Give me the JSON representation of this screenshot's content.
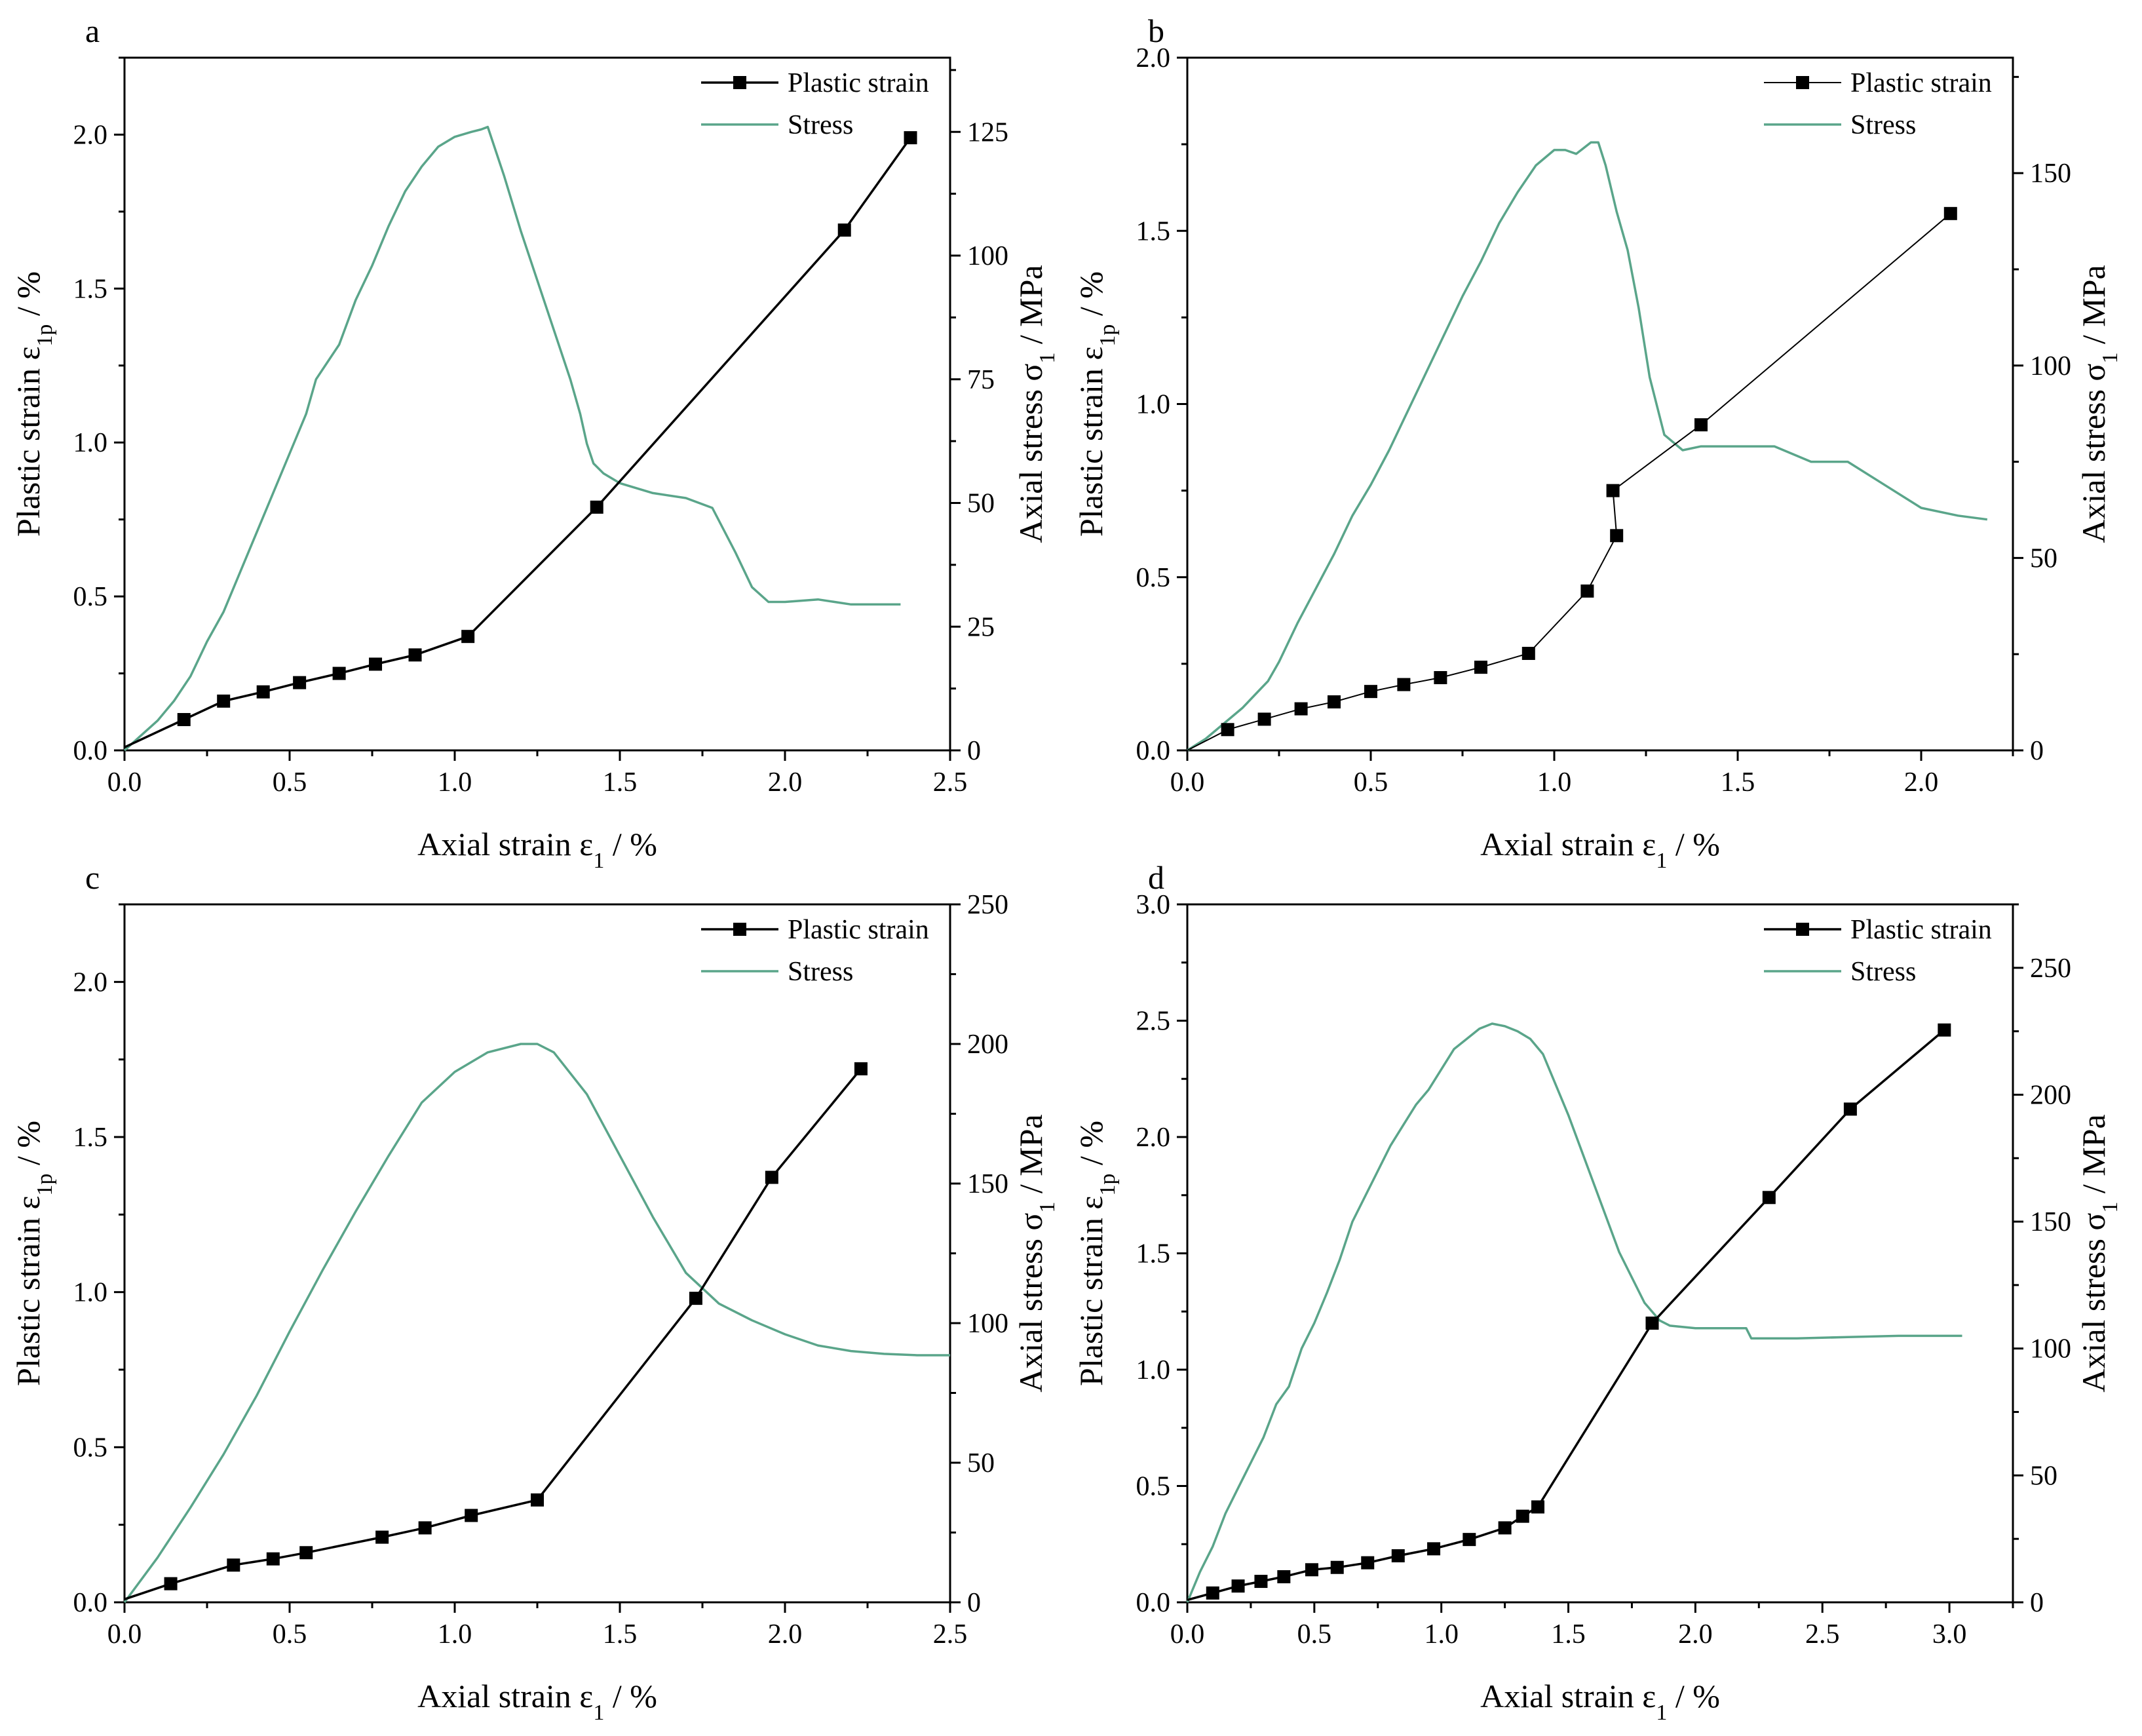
{
  "colors": {
    "plastic": "#000000",
    "stress": "#5aa58a"
  },
  "chart_data": [
    {
      "type": "line",
      "panel": "a",
      "xlabel": {
        "main": "Axial strain ε",
        "sub": "1",
        "tail": " / %"
      },
      "ylabel_left": {
        "main": "Plastic strain ε",
        "sub": "1p",
        "tail": " / %"
      },
      "ylabel_right": {
        "main": "Axial stress σ",
        "sub": "1",
        "tail": " / MPa"
      },
      "xlim": [
        0,
        2.5
      ],
      "ylim_left": [
        0,
        2.25
      ],
      "ylim_right": [
        0,
        140
      ],
      "xticks": [
        "0.0",
        "0.5",
        "1.0",
        "1.5",
        "2.0",
        "2.5"
      ],
      "xtick_values": [
        0,
        0.5,
        1,
        1.5,
        2,
        2.5
      ],
      "yticks_left": [
        "0.0",
        "0.5",
        "1.0",
        "1.5",
        "2.0"
      ],
      "ytick_left_values": [
        0,
        0.5,
        1,
        1.5,
        2
      ],
      "yticks_right": [
        "0",
        "25",
        "50",
        "75",
        "100",
        "125"
      ],
      "ytick_right_values": [
        0,
        25,
        50,
        75,
        100,
        125
      ],
      "legend": {
        "plastic": "Plastic strain",
        "stress": "Stress",
        "position": "top-right"
      },
      "plastic_x": [
        0,
        0.18,
        0.3,
        0.42,
        0.53,
        0.65,
        0.76,
        0.88,
        1.04,
        1.43,
        2.18,
        2.38
      ],
      "plastic_y": [
        0.01,
        0.1,
        0.16,
        0.19,
        0.22,
        0.25,
        0.28,
        0.31,
        0.37,
        0.79,
        1.69,
        1.99
      ],
      "stress_x": [
        0,
        0.05,
        0.1,
        0.15,
        0.2,
        0.25,
        0.3,
        0.35,
        0.4,
        0.45,
        0.5,
        0.55,
        0.58,
        0.62,
        0.65,
        0.7,
        0.75,
        0.8,
        0.85,
        0.9,
        0.95,
        1.0,
        1.05,
        1.08,
        1.1,
        1.15,
        1.2,
        1.25,
        1.3,
        1.35,
        1.38,
        1.4,
        1.42,
        1.45,
        1.5,
        1.6,
        1.7,
        1.78,
        1.85,
        1.9,
        1.95,
        2.0,
        2.1,
        2.2,
        2.3,
        2.35
      ],
      "stress_y": [
        0,
        3,
        6,
        10,
        15,
        22,
        28,
        36,
        44,
        52,
        60,
        68,
        75,
        79,
        82,
        91,
        98,
        106,
        113,
        118,
        122,
        124,
        125,
        125.5,
        126,
        116,
        105,
        95,
        85,
        75,
        68,
        62,
        58,
        56,
        54,
        52,
        51,
        49,
        40,
        33,
        30,
        30,
        30.5,
        29.5,
        29.5,
        29.5
      ]
    },
    {
      "type": "line",
      "panel": "b",
      "xlabel": {
        "main": "Axial strain ε",
        "sub": "1",
        "tail": " / %"
      },
      "ylabel_left": {
        "main": "Plastic strain ε",
        "sub": "1p",
        "tail": " / %"
      },
      "ylabel_right": {
        "main": "Axial stress σ",
        "sub": "1",
        "tail": " / MPa"
      },
      "xlim": [
        0,
        2.25
      ],
      "ylim_left": [
        0,
        2.0
      ],
      "ylim_right": [
        0,
        180
      ],
      "xticks": [
        "0.0",
        "0.5",
        "1.0",
        "1.5",
        "2.0"
      ],
      "xtick_values": [
        0,
        0.5,
        1,
        1.5,
        2
      ],
      "yticks_left": [
        "0.0",
        "0.5",
        "1.0",
        "1.5",
        "2.0"
      ],
      "ytick_left_values": [
        0,
        0.5,
        1,
        1.5,
        2
      ],
      "yticks_right": [
        "0",
        "50",
        "100",
        "150"
      ],
      "ytick_right_values": [
        0,
        50,
        100,
        150
      ],
      "legend": {
        "plastic": "Plastic strain",
        "stress": "Stress",
        "position": "top-right"
      },
      "plastic_x": [
        0,
        0.11,
        0.21,
        0.31,
        0.4,
        0.5,
        0.59,
        0.69,
        0.8,
        0.93,
        1.09,
        1.17,
        1.16,
        1.4,
        2.08
      ],
      "plastic_y": [
        0.0,
        0.06,
        0.09,
        0.12,
        0.14,
        0.17,
        0.19,
        0.21,
        0.24,
        0.28,
        0.46,
        0.62,
        0.75,
        0.94,
        1.55
      ],
      "stress_x": [
        0,
        0.05,
        0.1,
        0.15,
        0.2,
        0.22,
        0.25,
        0.3,
        0.35,
        0.4,
        0.45,
        0.5,
        0.55,
        0.6,
        0.65,
        0.7,
        0.75,
        0.8,
        0.85,
        0.9,
        0.95,
        1.0,
        1.03,
        1.06,
        1.1,
        1.12,
        1.14,
        1.17,
        1.2,
        1.23,
        1.26,
        1.3,
        1.35,
        1.4,
        1.5,
        1.6,
        1.7,
        1.8,
        1.9,
        2.0,
        2.1,
        2.18
      ],
      "stress_y": [
        0,
        3,
        7,
        11,
        16,
        18,
        23,
        33,
        42,
        51,
        61,
        69,
        78,
        88,
        98,
        108,
        118,
        127,
        137,
        145,
        152,
        156,
        156,
        155,
        158,
        158,
        152,
        140,
        130,
        115,
        97,
        82,
        78,
        79,
        79,
        79,
        75,
        75,
        69,
        63,
        61,
        60
      ]
    },
    {
      "type": "line",
      "panel": "c",
      "xlabel": {
        "main": "Axial strain ε",
        "sub": "1",
        "tail": " / %"
      },
      "ylabel_left": {
        "main": "Plastic strain ε",
        "sub": "1p",
        "tail": " / %"
      },
      "ylabel_right": {
        "main": "Axial stress σ",
        "sub": "1",
        "tail": " / MPa"
      },
      "xlim": [
        0,
        2.5
      ],
      "ylim_left": [
        0,
        2.25
      ],
      "ylim_right": [
        0,
        250
      ],
      "xticks": [
        "0.0",
        "0.5",
        "1.0",
        "1.5",
        "2.0",
        "2.5"
      ],
      "xtick_values": [
        0,
        0.5,
        1,
        1.5,
        2,
        2.5
      ],
      "yticks_left": [
        "0.0",
        "0.5",
        "1.0",
        "1.5",
        "2.0"
      ],
      "ytick_left_values": [
        0,
        0.5,
        1,
        1.5,
        2
      ],
      "yticks_right": [
        "0",
        "50",
        "100",
        "150",
        "200",
        "250"
      ],
      "ytick_right_values": [
        0,
        50,
        100,
        150,
        200,
        250
      ],
      "legend": {
        "plastic": "Plastic strain",
        "stress": "Stress",
        "position": "top-right"
      },
      "plastic_x": [
        0,
        0.14,
        0.33,
        0.45,
        0.55,
        0.78,
        0.91,
        1.05,
        1.25,
        1.73,
        1.96,
        2.23
      ],
      "plastic_y": [
        0.01,
        0.06,
        0.12,
        0.14,
        0.16,
        0.21,
        0.24,
        0.28,
        0.33,
        0.98,
        1.37,
        1.72
      ],
      "stress_x": [
        0,
        0.05,
        0.1,
        0.2,
        0.3,
        0.4,
        0.5,
        0.6,
        0.7,
        0.8,
        0.9,
        1.0,
        1.1,
        1.2,
        1.25,
        1.3,
        1.4,
        1.5,
        1.6,
        1.7,
        1.8,
        1.9,
        2.0,
        2.1,
        2.2,
        2.3,
        2.4,
        2.5
      ],
      "stress_y": [
        0,
        8,
        16,
        34,
        53,
        74,
        97,
        119,
        140,
        160,
        179,
        190,
        197,
        200,
        200,
        197,
        182,
        160,
        138,
        118,
        107,
        101,
        96,
        92,
        90,
        89,
        88.5,
        88.5
      ]
    },
    {
      "type": "line",
      "panel": "d",
      "xlabel": {
        "main": "Axial strain ε",
        "sub": "1",
        "tail": " / %"
      },
      "ylabel_left": {
        "main": "Plastic strain ε",
        "sub": "1p",
        "tail": " / %"
      },
      "ylabel_right": {
        "main": "Axial stress σ",
        "sub": "1",
        "tail": " / MPa"
      },
      "xlim": [
        0,
        3.25
      ],
      "ylim_left": [
        0,
        3.0
      ],
      "ylim_right": [
        0,
        275
      ],
      "xticks": [
        "0.0",
        "0.5",
        "1.0",
        "1.5",
        "2.0",
        "2.5",
        "3.0"
      ],
      "xtick_values": [
        0,
        0.5,
        1,
        1.5,
        2,
        2.5,
        3
      ],
      "yticks_left": [
        "0.0",
        "0.5",
        "1.0",
        "1.5",
        "2.0",
        "2.5",
        "3.0"
      ],
      "ytick_left_values": [
        0,
        0.5,
        1,
        1.5,
        2,
        2.5,
        3
      ],
      "yticks_right": [
        "0",
        "50",
        "100",
        "150",
        "200",
        "250"
      ],
      "ytick_right_values": [
        0,
        50,
        100,
        150,
        200,
        250
      ],
      "legend": {
        "plastic": "Plastic strain",
        "stress": "Stress",
        "position": "top-right"
      },
      "plastic_x": [
        0,
        0.1,
        0.2,
        0.29,
        0.38,
        0.49,
        0.59,
        0.71,
        0.83,
        0.97,
        1.11,
        1.25,
        1.32,
        1.38,
        1.83,
        2.29,
        2.61,
        2.98
      ],
      "plastic_y": [
        0.01,
        0.04,
        0.07,
        0.09,
        0.11,
        0.14,
        0.15,
        0.17,
        0.2,
        0.23,
        0.27,
        0.32,
        0.37,
        0.41,
        1.2,
        1.74,
        2.12,
        2.46
      ],
      "stress_x": [
        0,
        0.05,
        0.1,
        0.15,
        0.2,
        0.25,
        0.3,
        0.35,
        0.4,
        0.45,
        0.5,
        0.55,
        0.6,
        0.65,
        0.7,
        0.75,
        0.8,
        0.85,
        0.9,
        0.95,
        1.0,
        1.05,
        1.1,
        1.15,
        1.2,
        1.25,
        1.3,
        1.35,
        1.4,
        1.5,
        1.6,
        1.7,
        1.8,
        1.86,
        1.9,
        2.0,
        2.1,
        2.2,
        2.22,
        2.4,
        2.6,
        2.8,
        3.0,
        3.05
      ],
      "stress_y": [
        0,
        12,
        22,
        35,
        45,
        55,
        65,
        78,
        85,
        100,
        110,
        122,
        135,
        150,
        160,
        170,
        180,
        188,
        196,
        202,
        210,
        218,
        222,
        226,
        228,
        227,
        225,
        222,
        216,
        192,
        165,
        138,
        118,
        111,
        109,
        108,
        108,
        108,
        104,
        104,
        104.5,
        105,
        105,
        105
      ]
    }
  ]
}
